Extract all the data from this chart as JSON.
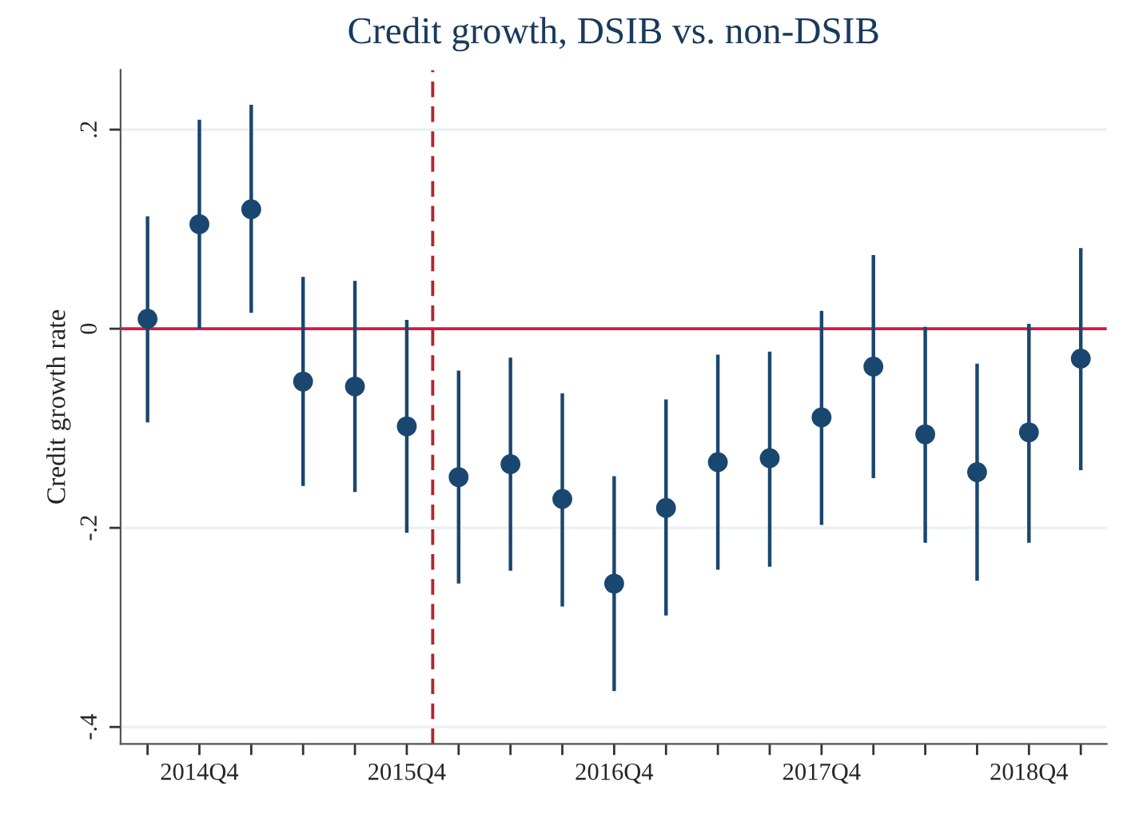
{
  "chart_data": {
    "type": "scatter",
    "title": "Credit growth, DSIB vs. non-DSIB",
    "ylabel": "Credit growth rate",
    "categories": [
      null,
      "2014Q4",
      null,
      null,
      null,
      "2015Q4",
      null,
      null,
      null,
      "2016Q4",
      null,
      null,
      null,
      "2017Q4",
      null,
      null,
      null,
      "2018Q4",
      null
    ],
    "series": [
      {
        "color": "#1a476f",
        "values": [
          0.01,
          0.105,
          0.12,
          -0.053,
          -0.058,
          -0.098,
          -0.149,
          -0.136,
          -0.171,
          -0.256,
          -0.18,
          -0.134,
          -0.13,
          -0.089,
          -0.038,
          -0.106,
          -0.144,
          -0.104,
          -0.03
        ],
        "errors": [
          [
            -0.094,
            0.113
          ],
          [
            0.0,
            0.21
          ],
          [
            0.016,
            0.225
          ],
          [
            -0.158,
            0.052
          ],
          [
            -0.164,
            0.048
          ],
          [
            -0.205,
            0.009
          ],
          [
            -0.256,
            -0.042
          ],
          [
            -0.243,
            -0.029
          ],
          [
            -0.279,
            -0.065
          ],
          [
            -0.364,
            -0.148
          ],
          [
            -0.288,
            -0.071
          ],
          [
            -0.242,
            -0.026
          ],
          [
            -0.239,
            -0.023
          ],
          [
            -0.197,
            0.018
          ],
          [
            -0.15,
            0.074
          ],
          [
            -0.215,
            0.002
          ],
          [
            -0.253,
            -0.035
          ],
          [
            -0.215,
            0.005
          ],
          [
            -0.142,
            0.081
          ]
        ]
      }
    ],
    "ylim": [
      -0.417,
      0.26
    ],
    "yticks": [
      {
        "value": -0.4,
        "label": "-.4"
      },
      {
        "value": -0.2,
        "label": "-.2"
      },
      {
        "value": 0,
        "label": "0"
      },
      {
        "value": 0.2,
        "label": ".2"
      }
    ],
    "ref_lines": [
      {
        "axis": "y",
        "value": 0,
        "color": "#d01c45",
        "line_style": "solid"
      }
    ],
    "grid": "y",
    "marker": "circle"
  }
}
